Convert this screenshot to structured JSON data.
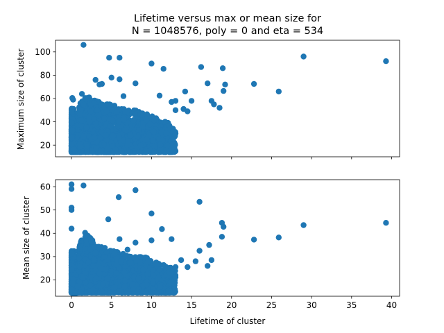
{
  "chart_data": [
    {
      "type": "scatter",
      "title_line1": "Lifetime versus max or mean size for",
      "title_line2": "N = 1048576, poly = 0 and eta = 534",
      "xlabel": "",
      "ylabel": "Maximum size of cluster",
      "xlim": [
        -2,
        41
      ],
      "ylim": [
        10,
        110
      ],
      "xticks": [
        0,
        5,
        10,
        15,
        20,
        25,
        30,
        35,
        40
      ],
      "xtick_labels_shown": false,
      "yticks": [
        20,
        40,
        60,
        80,
        100
      ],
      "ytick_labels": [
        "20",
        "40",
        "60",
        "80",
        "100"
      ],
      "marker_color": "#1f77b4",
      "outlier_points": [
        [
          1.5,
          106
        ],
        [
          4.7,
          95
        ],
        [
          6.0,
          95
        ],
        [
          10.0,
          90
        ],
        [
          11.5,
          85.5
        ],
        [
          16.2,
          87
        ],
        [
          18.9,
          86
        ],
        [
          29.0,
          96
        ],
        [
          39.3,
          92
        ],
        [
          25.9,
          66
        ],
        [
          22.8,
          72.5
        ],
        [
          17.0,
          73
        ],
        [
          19.2,
          72
        ],
        [
          19.0,
          66.5
        ],
        [
          17.5,
          58
        ],
        [
          17.8,
          55
        ],
        [
          18.5,
          52
        ],
        [
          15.0,
          58
        ],
        [
          14.0,
          51
        ],
        [
          14.5,
          49
        ],
        [
          13.0,
          50
        ],
        [
          14.2,
          66
        ],
        [
          13.0,
          58
        ],
        [
          12.5,
          57
        ],
        [
          11.0,
          62.5
        ],
        [
          3.5,
          72
        ],
        [
          3.8,
          72.5
        ],
        [
          3.0,
          76
        ],
        [
          5.0,
          78
        ],
        [
          6.0,
          76.5
        ],
        [
          8.0,
          73
        ],
        [
          6.5,
          62
        ],
        [
          1.3,
          64
        ],
        [
          0.1,
          60.5
        ],
        [
          0.2,
          59
        ],
        [
          13.0,
          30
        ]
      ],
      "cluster_density": [
        0,
        57,
        62,
        58,
        56,
        55,
        52,
        50,
        50,
        48,
        45,
        42,
        40,
        33
      ]
    },
    {
      "type": "scatter",
      "xlabel": "Lifetime of cluster",
      "ylabel": "Mean size of cluster",
      "xlim": [
        -2,
        41
      ],
      "ylim": [
        13,
        63
      ],
      "xticks": [
        0,
        5,
        10,
        15,
        20,
        25,
        30,
        35,
        40
      ],
      "xtick_labels": [
        "0",
        "5",
        "10",
        "15",
        "20",
        "25",
        "30",
        "35",
        "40"
      ],
      "yticks": [
        20,
        30,
        40,
        50,
        60
      ],
      "ytick_labels": [
        "20",
        "30",
        "40",
        "50",
        "60"
      ],
      "marker_color": "#1f77b4",
      "outlier_points": [
        [
          0.0,
          61
        ],
        [
          0.0,
          59
        ],
        [
          1.5,
          60.5
        ],
        [
          8.0,
          58.5
        ],
        [
          5.9,
          55.5
        ],
        [
          16.0,
          53.5
        ],
        [
          0.0,
          51
        ],
        [
          0.0,
          50
        ],
        [
          10.0,
          48.5
        ],
        [
          4.6,
          46
        ],
        [
          29.0,
          43.5
        ],
        [
          39.3,
          44.5
        ],
        [
          18.8,
          44.5
        ],
        [
          19.0,
          42.8
        ],
        [
          25.9,
          38.2
        ],
        [
          22.8,
          37.3
        ],
        [
          18.8,
          38.5
        ],
        [
          0.0,
          42
        ],
        [
          1.7,
          40.2
        ],
        [
          11.3,
          41.8
        ],
        [
          12.5,
          37.5
        ],
        [
          10.0,
          37
        ],
        [
          17.2,
          35
        ],
        [
          16.0,
          32.5
        ],
        [
          17.5,
          28.5
        ],
        [
          17.0,
          26
        ],
        [
          13.7,
          28.5
        ],
        [
          14.5,
          25.5
        ],
        [
          13.0,
          25.5
        ],
        [
          15.5,
          28
        ],
        [
          6.0,
          37.5
        ],
        [
          8.0,
          36
        ],
        [
          2.5,
          36.5
        ],
        [
          7.0,
          33
        ],
        [
          12.5,
          22.8
        ],
        [
          13.0,
          21.2
        ],
        [
          11.0,
          24.5
        ],
        [
          9.5,
          22.5
        ]
      ],
      "cluster_density": [
        0,
        36,
        40,
        35,
        34,
        33,
        32,
        31,
        30,
        30,
        29,
        27,
        26,
        24
      ]
    }
  ]
}
